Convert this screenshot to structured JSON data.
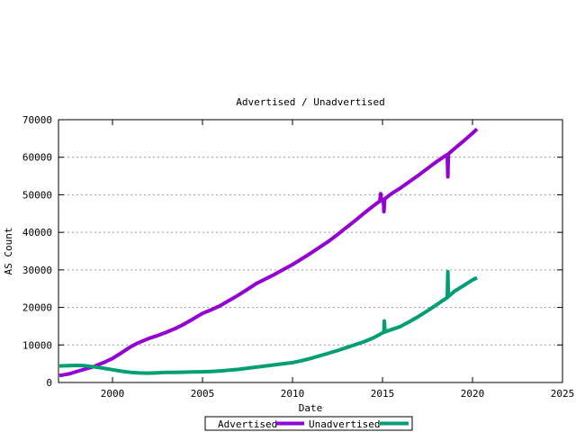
{
  "chart_data": {
    "type": "line",
    "title": "Advertised / Unadvertised",
    "xlabel": "Date",
    "ylabel": "AS Count",
    "xlim": [
      1997,
      2025
    ],
    "ylim": [
      0,
      70000
    ],
    "x_ticks": [
      2000,
      2005,
      2010,
      2015,
      2020,
      2025
    ],
    "y_ticks": [
      0,
      10000,
      20000,
      30000,
      40000,
      50000,
      60000,
      70000
    ],
    "grid": "horizontal-dashed",
    "grid_color": "#9a9a9a",
    "legend_position": "bottom-center-outside",
    "series": [
      {
        "name": "Advertised",
        "color": "#9400d3",
        "points": [
          [
            1997.05,
            1850
          ],
          [
            1997.6,
            2300
          ],
          [
            1998.0,
            2900
          ],
          [
            1998.5,
            3600
          ],
          [
            1999.0,
            4300
          ],
          [
            1999.5,
            5300
          ],
          [
            2000.0,
            6400
          ],
          [
            2000.5,
            7900
          ],
          [
            2001.0,
            9500
          ],
          [
            2001.4,
            10500
          ],
          [
            2002.0,
            11700
          ],
          [
            2002.5,
            12500
          ],
          [
            2003.0,
            13400
          ],
          [
            2003.5,
            14400
          ],
          [
            2004.0,
            15600
          ],
          [
            2004.5,
            17000
          ],
          [
            2005.0,
            18400
          ],
          [
            2005.5,
            19400
          ],
          [
            2006.0,
            20500
          ],
          [
            2006.5,
            21900
          ],
          [
            2007.0,
            23300
          ],
          [
            2007.5,
            24800
          ],
          [
            2008.0,
            26400
          ],
          [
            2008.5,
            27600
          ],
          [
            2009.0,
            28800
          ],
          [
            2009.5,
            30100
          ],
          [
            2010.0,
            31400
          ],
          [
            2010.5,
            32900
          ],
          [
            2011.0,
            34400
          ],
          [
            2011.5,
            36000
          ],
          [
            2012.0,
            37600
          ],
          [
            2012.5,
            39400
          ],
          [
            2013.0,
            41300
          ],
          [
            2013.5,
            43200
          ],
          [
            2014.0,
            45200
          ],
          [
            2014.7,
            47800
          ],
          [
            2014.85,
            48300
          ],
          [
            2014.9,
            50300
          ],
          [
            2014.95,
            48400
          ],
          [
            2015.05,
            48600
          ],
          [
            2015.08,
            45500
          ],
          [
            2015.12,
            48900
          ],
          [
            2015.5,
            50300
          ],
          [
            2016.0,
            51800
          ],
          [
            2016.5,
            53500
          ],
          [
            2017.0,
            55200
          ],
          [
            2017.5,
            57000
          ],
          [
            2018.0,
            58800
          ],
          [
            2018.4,
            60100
          ],
          [
            2018.6,
            60700
          ],
          [
            2018.63,
            54800
          ],
          [
            2018.66,
            60900
          ],
          [
            2019.0,
            62300
          ],
          [
            2019.5,
            64300
          ],
          [
            2020.0,
            66400
          ],
          [
            2020.25,
            67500
          ]
        ]
      },
      {
        "name": "Unadvertised",
        "color": "#009e73",
        "points": [
          [
            1997.05,
            4400
          ],
          [
            1997.6,
            4500
          ],
          [
            1998.0,
            4550
          ],
          [
            1998.4,
            4500
          ],
          [
            1999.0,
            4150
          ],
          [
            1999.5,
            3800
          ],
          [
            2000.0,
            3400
          ],
          [
            2000.5,
            3000
          ],
          [
            2001.0,
            2700
          ],
          [
            2001.5,
            2550
          ],
          [
            2002.0,
            2500
          ],
          [
            2002.5,
            2600
          ],
          [
            2003.0,
            2700
          ],
          [
            2003.5,
            2720
          ],
          [
            2004.0,
            2750
          ],
          [
            2004.5,
            2800
          ],
          [
            2005.0,
            2850
          ],
          [
            2005.5,
            2950
          ],
          [
            2006.0,
            3100
          ],
          [
            2006.5,
            3300
          ],
          [
            2007.0,
            3500
          ],
          [
            2007.5,
            3800
          ],
          [
            2008.0,
            4100
          ],
          [
            2008.5,
            4400
          ],
          [
            2009.0,
            4700
          ],
          [
            2009.5,
            5000
          ],
          [
            2010.0,
            5300
          ],
          [
            2010.5,
            5800
          ],
          [
            2011.0,
            6400
          ],
          [
            2011.5,
            7100
          ],
          [
            2012.0,
            7800
          ],
          [
            2012.5,
            8500
          ],
          [
            2013.0,
            9300
          ],
          [
            2013.5,
            10100
          ],
          [
            2014.0,
            10900
          ],
          [
            2014.5,
            11900
          ],
          [
            2015.0,
            13200
          ],
          [
            2015.08,
            13400
          ],
          [
            2015.1,
            16400
          ],
          [
            2015.14,
            13500
          ],
          [
            2015.5,
            14100
          ],
          [
            2016.0,
            14900
          ],
          [
            2016.5,
            16200
          ],
          [
            2017.0,
            17600
          ],
          [
            2017.5,
            19100
          ],
          [
            2018.0,
            20700
          ],
          [
            2018.4,
            22000
          ],
          [
            2018.6,
            22600
          ],
          [
            2018.63,
            29500
          ],
          [
            2018.66,
            22900
          ],
          [
            2019.0,
            24300
          ],
          [
            2019.5,
            25800
          ],
          [
            2020.0,
            27300
          ],
          [
            2020.25,
            27900
          ]
        ]
      }
    ]
  }
}
